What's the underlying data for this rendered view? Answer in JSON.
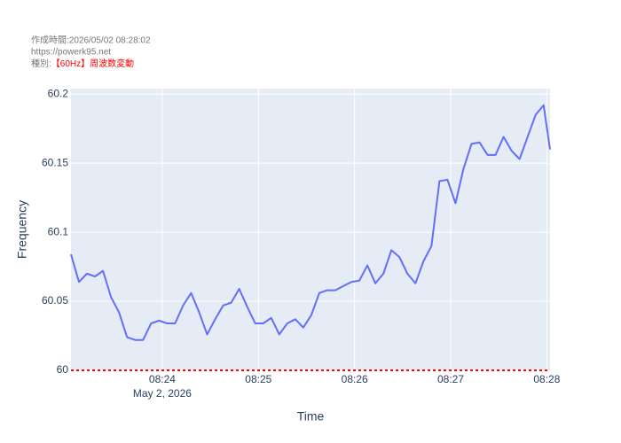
{
  "chart_data": {
    "type": "line",
    "notes": [
      "作成時間:2026/05/02 08:28:02",
      "https://powerk95.net"
    ],
    "kind_label": "種別:",
    "kind_value": "【60Hz】周波数変動",
    "kind_color": "#ff0000",
    "x_axis_label": "Time",
    "y_axis_label": "Frequency",
    "x": [
      "2026-05-02T08:23:03",
      "2026-05-02T08:23:08",
      "2026-05-02T08:23:13",
      "2026-05-02T08:23:18",
      "2026-05-02T08:23:23",
      "2026-05-02T08:23:28",
      "2026-05-02T08:23:33",
      "2026-05-02T08:23:38",
      "2026-05-02T08:23:43",
      "2026-05-02T08:23:48",
      "2026-05-02T08:23:53",
      "2026-05-02T08:23:58",
      "2026-05-02T08:24:03",
      "2026-05-02T08:24:08",
      "2026-05-02T08:24:13",
      "2026-05-02T08:24:18",
      "2026-05-02T08:24:23",
      "2026-05-02T08:24:28",
      "2026-05-02T08:24:33",
      "2026-05-02T08:24:38",
      "2026-05-02T08:24:43",
      "2026-05-02T08:24:48",
      "2026-05-02T08:24:53",
      "2026-05-02T08:24:58",
      "2026-05-02T08:25:03",
      "2026-05-02T08:25:08",
      "2026-05-02T08:25:13",
      "2026-05-02T08:25:18",
      "2026-05-02T08:25:23",
      "2026-05-02T08:25:28",
      "2026-05-02T08:25:33",
      "2026-05-02T08:25:38",
      "2026-05-02T08:25:43",
      "2026-05-02T08:25:48",
      "2026-05-02T08:25:53",
      "2026-05-02T08:25:58",
      "2026-05-02T08:26:03",
      "2026-05-02T08:26:08",
      "2026-05-02T08:26:13",
      "2026-05-02T08:26:18",
      "2026-05-02T08:26:23",
      "2026-05-02T08:26:28",
      "2026-05-02T08:26:33",
      "2026-05-02T08:26:38",
      "2026-05-02T08:26:43",
      "2026-05-02T08:26:48",
      "2026-05-02T08:26:53",
      "2026-05-02T08:26:58",
      "2026-05-02T08:27:03",
      "2026-05-02T08:27:08",
      "2026-05-02T08:27:13",
      "2026-05-02T08:27:18",
      "2026-05-02T08:27:23",
      "2026-05-02T08:27:28",
      "2026-05-02T08:27:33",
      "2026-05-02T08:27:38",
      "2026-05-02T08:27:43",
      "2026-05-02T08:27:48",
      "2026-05-02T08:27:53",
      "2026-05-02T08:27:58",
      "2026-05-02T08:28:02"
    ],
    "values": [
      60.084,
      60.064,
      60.07,
      60.068,
      60.072,
      60.053,
      60.042,
      60.024,
      60.022,
      60.022,
      60.034,
      60.036,
      60.034,
      60.034,
      60.047,
      60.056,
      60.042,
      60.026,
      60.037,
      60.047,
      60.049,
      60.059,
      60.046,
      60.034,
      60.034,
      60.038,
      60.026,
      60.034,
      60.037,
      60.031,
      60.04,
      60.056,
      60.058,
      60.058,
      60.061,
      60.064,
      60.065,
      60.076,
      60.063,
      60.07,
      60.087,
      60.082,
      60.07,
      60.063,
      60.079,
      60.09,
      60.137,
      60.138,
      60.121,
      60.146,
      60.164,
      60.165,
      60.156,
      60.156,
      60.169,
      60.159,
      60.153,
      60.169,
      60.185,
      60.192,
      60.16
    ],
    "color": "#636efa",
    "reference_line": 60,
    "reference_color": "#ff0000",
    "xlim": [
      "2026-05-02T08:23:03",
      "2026-05-02T08:28:02"
    ],
    "xticks": [
      {
        "value": "2026-05-02T08:24:00",
        "label": "08:24"
      },
      {
        "value": "2026-05-02T08:25:00",
        "label": "08:25"
      },
      {
        "value": "2026-05-02T08:26:00",
        "label": "08:26"
      },
      {
        "value": "2026-05-02T08:27:00",
        "label": "08:27"
      },
      {
        "value": "2026-05-02T08:28:00",
        "label": "08:28"
      }
    ],
    "x_date_label": "May 2, 2026",
    "ylim": [
      60,
      60.204
    ],
    "yticks": [
      60,
      60.05,
      60.1,
      60.15,
      60.2
    ],
    "grid": true
  }
}
